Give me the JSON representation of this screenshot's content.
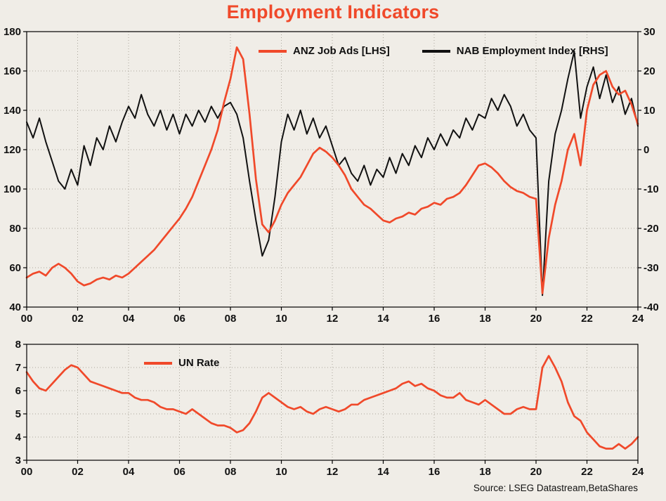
{
  "title": "Employment Indicators",
  "source": "Source: LSEG Datastream,BetaShares",
  "colors": {
    "accent": "#f0492a",
    "line_black": "#111111",
    "grid": "#aaa59b",
    "background": "#f0ede7",
    "label": "#111111"
  },
  "legend": {
    "top": [
      "ANZ Job Ads [LHS]",
      "NAB Employment Index [RHS]"
    ],
    "bottom": [
      "UN Rate"
    ]
  },
  "chart_data": [
    {
      "type": "line",
      "title": "",
      "x_range": [
        2000,
        2024
      ],
      "x_ticks": {
        "values": [
          2000,
          2002,
          2004,
          2006,
          2008,
          2010,
          2012,
          2014,
          2016,
          2018,
          2020,
          2022,
          2024
        ],
        "labels": [
          "00",
          "02",
          "04",
          "06",
          "08",
          "10",
          "12",
          "14",
          "16",
          "18",
          "20",
          "22",
          "24"
        ]
      },
      "left_axis": {
        "range": [
          40,
          180
        ],
        "ticks": [
          40,
          60,
          80,
          100,
          120,
          140,
          160,
          180
        ]
      },
      "right_axis": {
        "range": [
          -40,
          30
        ],
        "ticks": [
          -40,
          -30,
          -20,
          -10,
          0,
          10,
          20,
          30
        ]
      },
      "grid": true,
      "plot": {
        "l": 38,
        "t": 45,
        "r": 908,
        "b": 437
      },
      "draw_order": [
        1,
        0
      ],
      "series": [
        {
          "name": "ANZ Job Ads [LHS]",
          "axis": "left",
          "color": "#f0492a",
          "width": 2.7,
          "start": 2000,
          "step": 0.25,
          "values": [
            55,
            57,
            58,
            56,
            60,
            62,
            60,
            57,
            53,
            51,
            52,
            54,
            55,
            54,
            56,
            55,
            57,
            60,
            63,
            66,
            69,
            73,
            77,
            81,
            85,
            90,
            96,
            104,
            112,
            120,
            130,
            144,
            156,
            172,
            166,
            138,
            105,
            82,
            78,
            84,
            92,
            98,
            102,
            106,
            112,
            118,
            121,
            119,
            116,
            112,
            107,
            100,
            96,
            92,
            90,
            87,
            84,
            83,
            85,
            86,
            88,
            87,
            90,
            91,
            93,
            92,
            95,
            96,
            98,
            102,
            107,
            112,
            113,
            111,
            108,
            104,
            101,
            99,
            98,
            96,
            95,
            47,
            75,
            92,
            104,
            120,
            128,
            112,
            140,
            153,
            158,
            160,
            152,
            148,
            150,
            143,
            133
          ]
        },
        {
          "name": "NAB Employment Index [RHS]",
          "axis": "right",
          "color": "#111111",
          "width": 2,
          "start": 2000,
          "step": 0.25,
          "values": [
            7,
            3,
            8,
            2,
            -3,
            -8,
            -10,
            -5,
            -9,
            1,
            -4,
            3,
            0,
            6,
            2,
            7,
            11,
            8,
            14,
            9,
            6,
            10,
            5,
            9,
            4,
            9,
            6,
            10,
            7,
            11,
            8,
            11,
            12,
            9,
            3,
            -8,
            -18,
            -27,
            -23,
            -12,
            2,
            9,
            5,
            10,
            4,
            8,
            3,
            6,
            1,
            -4,
            -2,
            -6,
            -8,
            -4,
            -9,
            -5,
            -7,
            -2,
            -6,
            -1,
            -4,
            1,
            -2,
            3,
            0,
            4,
            1,
            5,
            3,
            8,
            5,
            9,
            8,
            13,
            10,
            14,
            11,
            6,
            9,
            5,
            3,
            -37,
            -8,
            4,
            10,
            18,
            25,
            8,
            16,
            21,
            13,
            19,
            12,
            16,
            9,
            13,
            6
          ]
        }
      ]
    },
    {
      "type": "line",
      "title": "",
      "x_range": [
        2000,
        2024
      ],
      "x_ticks": {
        "values": [
          2000,
          2002,
          2004,
          2006,
          2008,
          2010,
          2012,
          2014,
          2016,
          2018,
          2020,
          2022,
          2024
        ],
        "labels": [
          "00",
          "02",
          "04",
          "06",
          "08",
          "10",
          "12",
          "14",
          "16",
          "18",
          "20",
          "22",
          "24"
        ]
      },
      "left_axis": {
        "range": [
          3,
          8
        ],
        "ticks": [
          3,
          4,
          5,
          6,
          7,
          8
        ]
      },
      "grid": true,
      "plot": {
        "l": 38,
        "t": 490,
        "r": 908,
        "b": 655
      },
      "draw_order": [
        0
      ],
      "series": [
        {
          "name": "UN Rate",
          "axis": "left",
          "color": "#f0492a",
          "width": 2.7,
          "start": 2000,
          "step": 0.25,
          "values": [
            6.8,
            6.4,
            6.1,
            6.0,
            6.3,
            6.6,
            6.9,
            7.1,
            7.0,
            6.7,
            6.4,
            6.3,
            6.2,
            6.1,
            6.0,
            5.9,
            5.9,
            5.7,
            5.6,
            5.6,
            5.5,
            5.3,
            5.2,
            5.2,
            5.1,
            5.0,
            5.2,
            5.0,
            4.8,
            4.6,
            4.5,
            4.5,
            4.4,
            4.2,
            4.3,
            4.6,
            5.1,
            5.7,
            5.9,
            5.7,
            5.5,
            5.3,
            5.2,
            5.3,
            5.1,
            5.0,
            5.2,
            5.3,
            5.2,
            5.1,
            5.2,
            5.4,
            5.4,
            5.6,
            5.7,
            5.8,
            5.9,
            6.0,
            6.1,
            6.3,
            6.4,
            6.2,
            6.3,
            6.1,
            6.0,
            5.8,
            5.7,
            5.7,
            5.9,
            5.6,
            5.5,
            5.4,
            5.6,
            5.4,
            5.2,
            5.0,
            5.0,
            5.2,
            5.3,
            5.2,
            5.2,
            7.0,
            7.5,
            7.0,
            6.4,
            5.5,
            4.9,
            4.7,
            4.2,
            3.9,
            3.6,
            3.5,
            3.5,
            3.7,
            3.5,
            3.7,
            4.0
          ]
        }
      ]
    }
  ]
}
